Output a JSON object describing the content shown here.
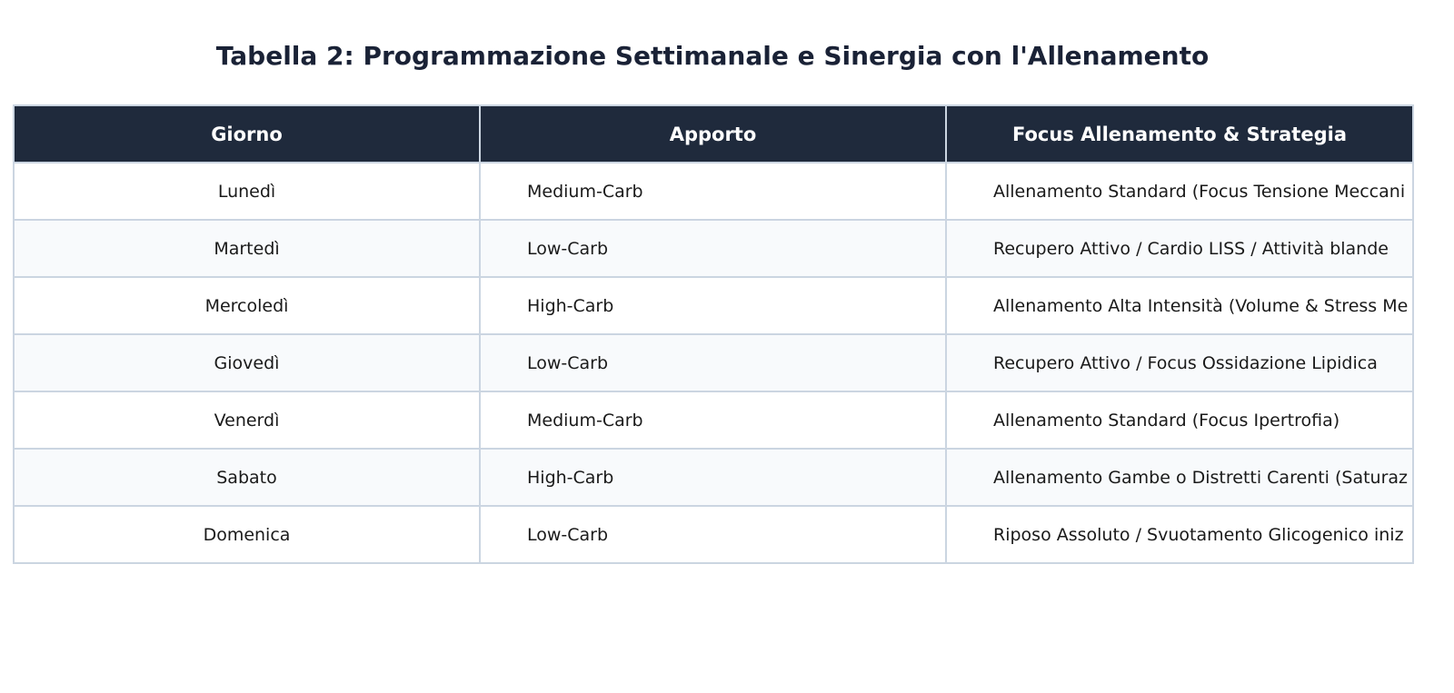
{
  "title": "Tabella 2: Programmazione Settimanale e Sinergia con l'Allenamento",
  "table": {
    "header": [
      "Giorno",
      "Apporto",
      "Focus Allenamento & Strategia"
    ],
    "rows": [
      [
        "Lunedì",
        "Medium-Carb",
        "Allenamento Standard (Focus Tensione Meccani"
      ],
      [
        "Martedì",
        "Low-Carb",
        "Recupero Attivo / Cardio LISS / Attività blande"
      ],
      [
        "Mercoledì",
        "High-Carb",
        "Allenamento Alta Intensità (Volume & Stress Me"
      ],
      [
        "Giovedì",
        "Low-Carb",
        "Recupero Attivo / Focus Ossidazione Lipidica"
      ],
      [
        "Venerdì",
        "Medium-Carb",
        "Allenamento Standard (Focus Ipertrofia)"
      ],
      [
        "Sabato",
        "High-Carb",
        "Allenamento Gambe o Distretti Carenti (Saturaz"
      ],
      [
        "Domenica",
        "Low-Carb",
        "Riposo Assoluto / Svuotamento Glicogenico iniz"
      ]
    ]
  }
}
